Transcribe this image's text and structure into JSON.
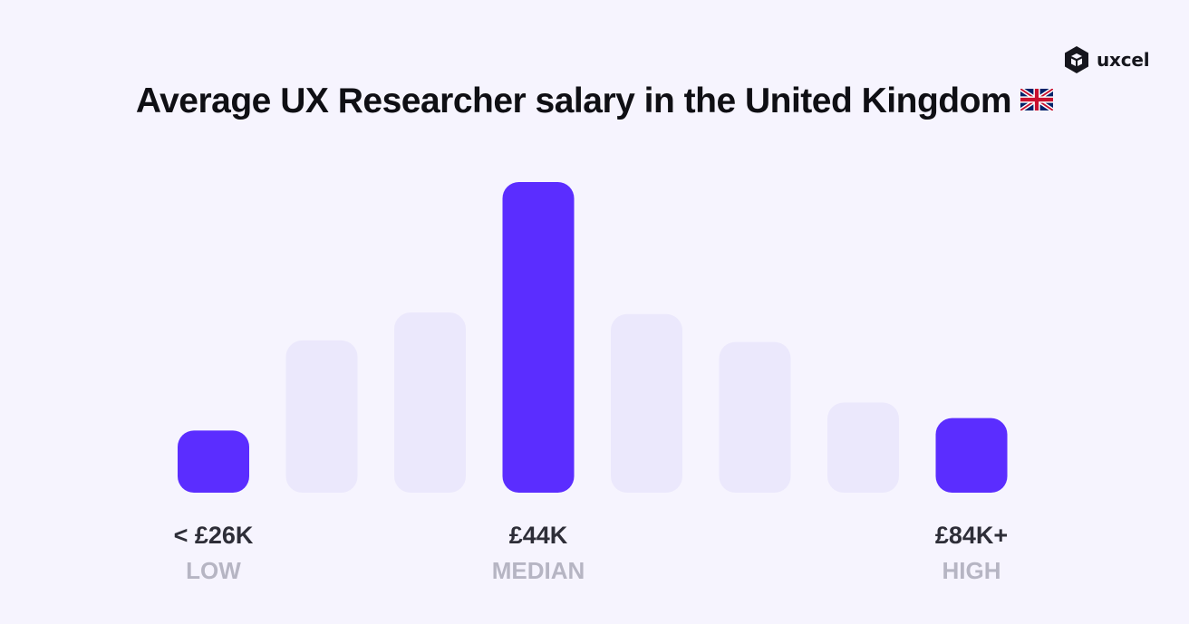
{
  "brand": {
    "name": "uxcel",
    "logo_icon": "uxcel-cube-logo-icon"
  },
  "title": "Average UX Researcher salary in the United Kingdom",
  "flag_icon": "uk-flag-icon",
  "colors": {
    "highlight": "#5b2dff",
    "muted": "#ebe8fc",
    "background": "#f6f4fe"
  },
  "chart_data": {
    "type": "bar",
    "title": "Average UX Researcher salary in the United Kingdom",
    "relative_heights": [
      0.2,
      0.49,
      0.58,
      1.0,
      0.575,
      0.485,
      0.29,
      0.24
    ],
    "highlighted_bars": [
      0,
      3,
      7
    ],
    "grid": false,
    "labels": [
      {
        "bar": 0,
        "value": "< £26K",
        "category": "LOW"
      },
      {
        "bar": 3,
        "value": "£44K",
        "category": "MEDIAN"
      },
      {
        "bar": 7,
        "value": "£84K+",
        "category": "HIGH"
      }
    ]
  }
}
